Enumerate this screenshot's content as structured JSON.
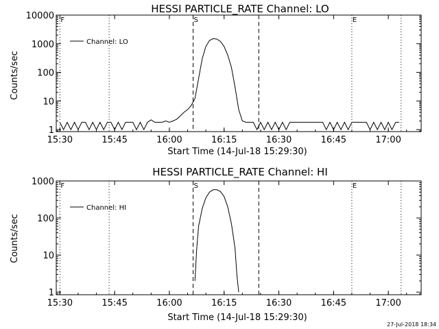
{
  "chart_data": [
    {
      "type": "line",
      "title": "HESSI PARTICLE_RATE Channel: LO",
      "xlabel": "Start Time (14-Jul-18 15:29:30)",
      "ylabel": "Counts/sec",
      "yscale": "log",
      "xlim": [
        "15:29",
        "17:09"
      ],
      "ylim": [
        0.85,
        10000
      ],
      "x_ticks": [
        "15:30",
        "15:45",
        "16:00",
        "16:15",
        "16:30",
        "16:45",
        "17:00"
      ],
      "y_ticks": [
        "1",
        "10",
        "100",
        "1000",
        "10000"
      ],
      "legend": {
        "label": "Channel: LO",
        "position": "top-left"
      },
      "markers": [
        {
          "label": "F",
          "time": "15:30",
          "style": "dotted"
        },
        {
          "label": "",
          "time": "15:43.5",
          "style": "dotted"
        },
        {
          "label": "S",
          "time": "16:06.5",
          "style": "dashed"
        },
        {
          "label": "",
          "time": "16:24.5",
          "style": "dashed"
        },
        {
          "label": "E",
          "time": "16:50",
          "style": "dotted"
        },
        {
          "label": "",
          "time": "17:03.5",
          "style": "dotted"
        }
      ],
      "series": [
        {
          "name": "Channel: LO",
          "points": [
            [
              "15:30",
              1.8
            ],
            [
              "15:31",
              1.0
            ],
            [
              "15:32",
              1.8
            ],
            [
              "15:33",
              1.0
            ],
            [
              "15:34",
              1.8
            ],
            [
              "15:35",
              1.0
            ],
            [
              "15:36",
              1.8
            ],
            [
              "15:37",
              1.8
            ],
            [
              "15:38",
              1.0
            ],
            [
              "15:39",
              1.8
            ],
            [
              "15:40",
              1.0
            ],
            [
              "15:41",
              1.8
            ],
            [
              "15:42",
              1.0
            ],
            [
              "15:43",
              1.8
            ],
            [
              "15:44",
              1.8
            ],
            [
              "15:45",
              1.0
            ],
            [
              "15:46",
              1.8
            ],
            [
              "15:47",
              1.0
            ],
            [
              "15:48",
              1.8
            ],
            [
              "15:49",
              1.8
            ],
            [
              "15:50",
              1.8
            ],
            [
              "15:51",
              1.0
            ],
            [
              "15:52",
              1.8
            ],
            [
              "15:53",
              1.0
            ],
            [
              "15:54",
              1.8
            ],
            [
              "15:55",
              2.2
            ],
            [
              "15:56",
              1.8
            ],
            [
              "15:57",
              1.8
            ],
            [
              "15:58",
              1.8
            ],
            [
              "15:59",
              2.0
            ],
            [
              "16:00",
              1.8
            ],
            [
              "16:01",
              2.0
            ],
            [
              "16:02",
              2.3
            ],
            [
              "16:03",
              3.0
            ],
            [
              "16:04",
              4.0
            ],
            [
              "16:05",
              5.0
            ],
            [
              "16:06",
              7.0
            ],
            [
              "16:07",
              12.0
            ],
            [
              "16:08",
              60.0
            ],
            [
              "16:09",
              300.0
            ],
            [
              "16:10",
              800.0
            ],
            [
              "16:11",
              1300.0
            ],
            [
              "16:12",
              1500.0
            ],
            [
              "16:13",
              1450.0
            ],
            [
              "16:14",
              1200.0
            ],
            [
              "16:15",
              800.0
            ],
            [
              "16:16",
              400.0
            ],
            [
              "16:17",
              150.0
            ],
            [
              "16:18",
              30.0
            ],
            [
              "16:19",
              5.0
            ],
            [
              "16:20",
              2.0
            ],
            [
              "16:21",
              1.8
            ],
            [
              "16:22",
              1.8
            ],
            [
              "16:23",
              1.8
            ],
            [
              "16:24",
              1.0
            ],
            [
              "16:25",
              1.8
            ],
            [
              "16:26",
              1.0
            ],
            [
              "16:27",
              1.8
            ],
            [
              "16:28",
              1.0
            ],
            [
              "16:29",
              1.8
            ],
            [
              "16:30",
              1.0
            ],
            [
              "16:31",
              1.8
            ],
            [
              "16:32",
              1.0
            ],
            [
              "16:33",
              1.8
            ],
            [
              "16:34",
              1.8
            ],
            [
              "16:35",
              1.8
            ],
            [
              "16:36",
              1.8
            ],
            [
              "16:37",
              1.8
            ],
            [
              "16:38",
              1.8
            ],
            [
              "16:39",
              1.8
            ],
            [
              "16:40",
              1.8
            ],
            [
              "16:41",
              1.8
            ],
            [
              "16:42",
              1.8
            ],
            [
              "16:43",
              1.0
            ],
            [
              "16:44",
              1.8
            ],
            [
              "16:45",
              1.0
            ],
            [
              "16:46",
              1.8
            ],
            [
              "16:47",
              1.0
            ],
            [
              "16:48",
              1.8
            ],
            [
              "16:49",
              1.0
            ],
            [
              "16:50",
              1.8
            ],
            [
              "16:51",
              1.8
            ],
            [
              "16:52",
              1.8
            ],
            [
              "16:53",
              1.8
            ],
            [
              "16:54",
              1.8
            ],
            [
              "16:55",
              1.0
            ],
            [
              "16:56",
              1.8
            ],
            [
              "16:57",
              1.0
            ],
            [
              "16:58",
              1.8
            ],
            [
              "16:59",
              1.0
            ],
            [
              "17:00",
              1.8
            ],
            [
              "17:01",
              1.0
            ],
            [
              "17:02",
              1.8
            ],
            [
              "17:03",
              1.8
            ]
          ]
        }
      ]
    },
    {
      "type": "line",
      "title": "HESSI PARTICLE_RATE Channel: HI",
      "xlabel": "Start Time (14-Jul-18 15:29:30)",
      "ylabel": "Counts/sec",
      "yscale": "log",
      "xlim": [
        "15:29",
        "17:09"
      ],
      "ylim": [
        0.85,
        1000
      ],
      "x_ticks": [
        "15:30",
        "15:45",
        "16:00",
        "16:15",
        "16:30",
        "16:45",
        "17:00"
      ],
      "y_ticks": [
        "1",
        "10",
        "100",
        "1000"
      ],
      "legend": {
        "label": "Channel: HI",
        "position": "top-left"
      },
      "markers": [
        {
          "label": "F",
          "time": "15:30",
          "style": "dotted"
        },
        {
          "label": "",
          "time": "15:43.5",
          "style": "dotted"
        },
        {
          "label": "S",
          "time": "16:06.5",
          "style": "dashed"
        },
        {
          "label": "",
          "time": "16:24.5",
          "style": "dashed"
        },
        {
          "label": "E",
          "time": "16:50",
          "style": "dotted"
        },
        {
          "label": "",
          "time": "17:03.5",
          "style": "dotted"
        }
      ],
      "series": [
        {
          "name": "Channel: HI",
          "points": [
            [
              "16:07",
              2.0
            ],
            [
              "16:07.5",
              15.0
            ],
            [
              "16:08",
              60.0
            ],
            [
              "16:09",
              180.0
            ],
            [
              "16:10",
              350.0
            ],
            [
              "16:11",
              500.0
            ],
            [
              "16:12",
              580.0
            ],
            [
              "16:13",
              580.0
            ],
            [
              "16:14",
              520.0
            ],
            [
              "16:15",
              380.0
            ],
            [
              "16:16",
              200.0
            ],
            [
              "16:17",
              70.0
            ],
            [
              "16:18",
              15.0
            ],
            [
              "16:18.5",
              3.0
            ],
            [
              "16:19",
              1.0
            ]
          ]
        }
      ]
    }
  ],
  "timestamp": "27-Jul-2018 18:34"
}
